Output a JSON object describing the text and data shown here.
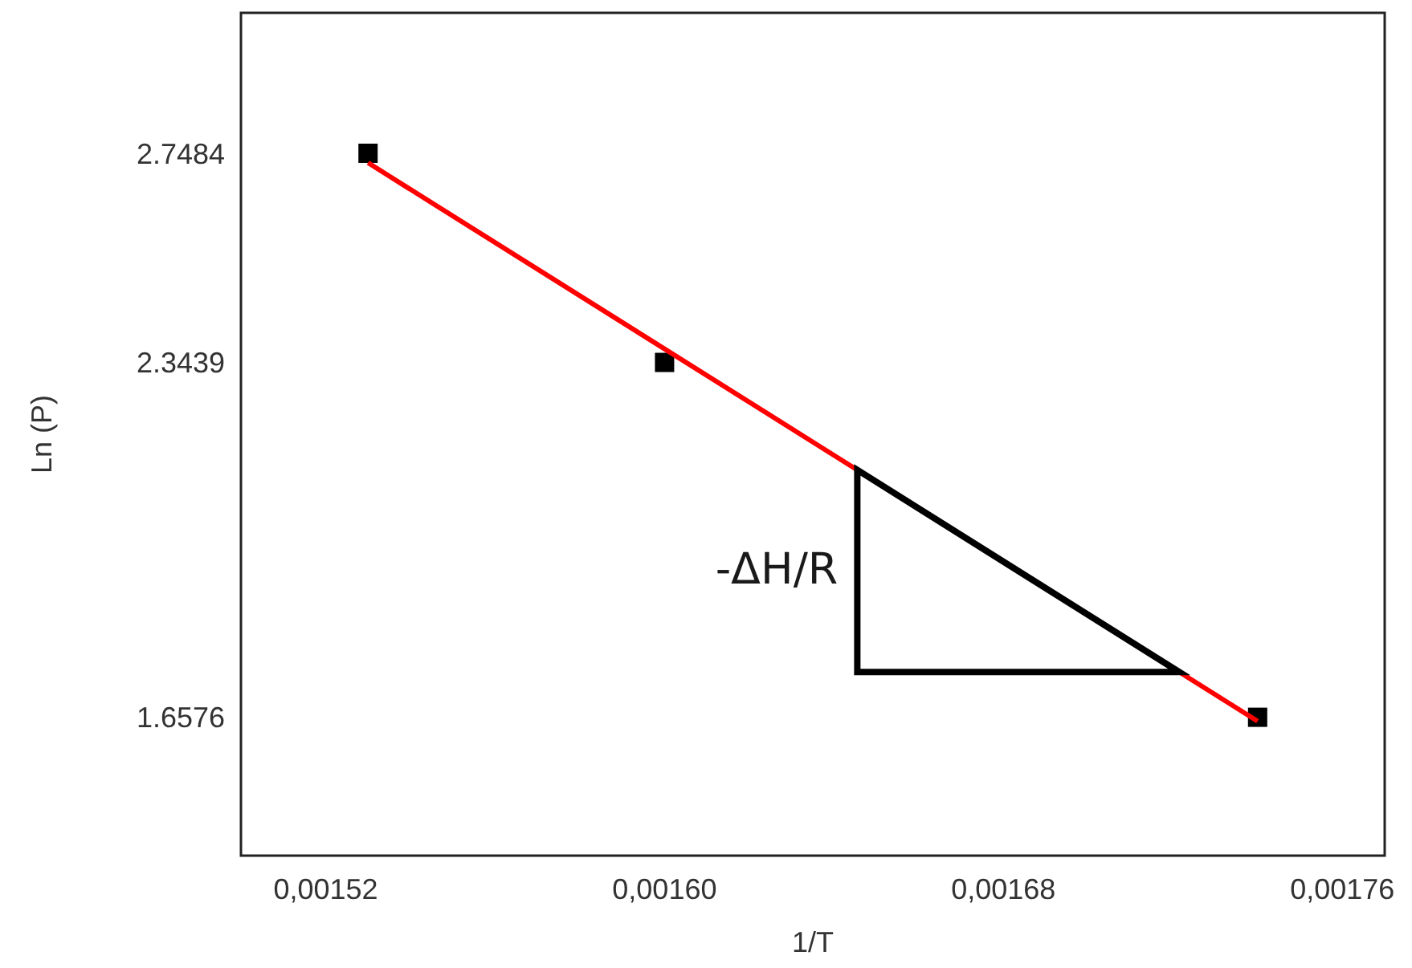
{
  "chart_data": {
    "type": "scatter",
    "xlabel": "1/T",
    "ylabel": "Ln (P)",
    "xlim": [
      0.0015,
      0.00177
    ],
    "ylim": [
      1.39,
      3.02
    ],
    "xticks": [
      {
        "value": 0.00152,
        "label": "0,00152"
      },
      {
        "value": 0.0016,
        "label": "0,00160"
      },
      {
        "value": 0.00168,
        "label": "0,00168"
      },
      {
        "value": 0.00176,
        "label": "0,00176"
      }
    ],
    "yticks": [
      {
        "value": 1.6576,
        "label": "1.6576"
      },
      {
        "value": 2.3439,
        "label": "2.3439"
      },
      {
        "value": 2.7484,
        "label": "2.7484"
      }
    ],
    "grid": false,
    "marker": "square",
    "series": [
      {
        "color": "#000000",
        "x": [
          0.00153,
          0.0016,
          0.00174
        ],
        "values": [
          2.7484,
          2.3439,
          1.6576
        ]
      },
      {
        "type": "line",
        "color": "#ff0000",
        "marker": "none",
        "x": [
          0.00153,
          0.00174
        ],
        "values": [
          2.73,
          1.65
        ]
      }
    ],
    "annotations": [
      "-ΔH/R"
    ]
  }
}
